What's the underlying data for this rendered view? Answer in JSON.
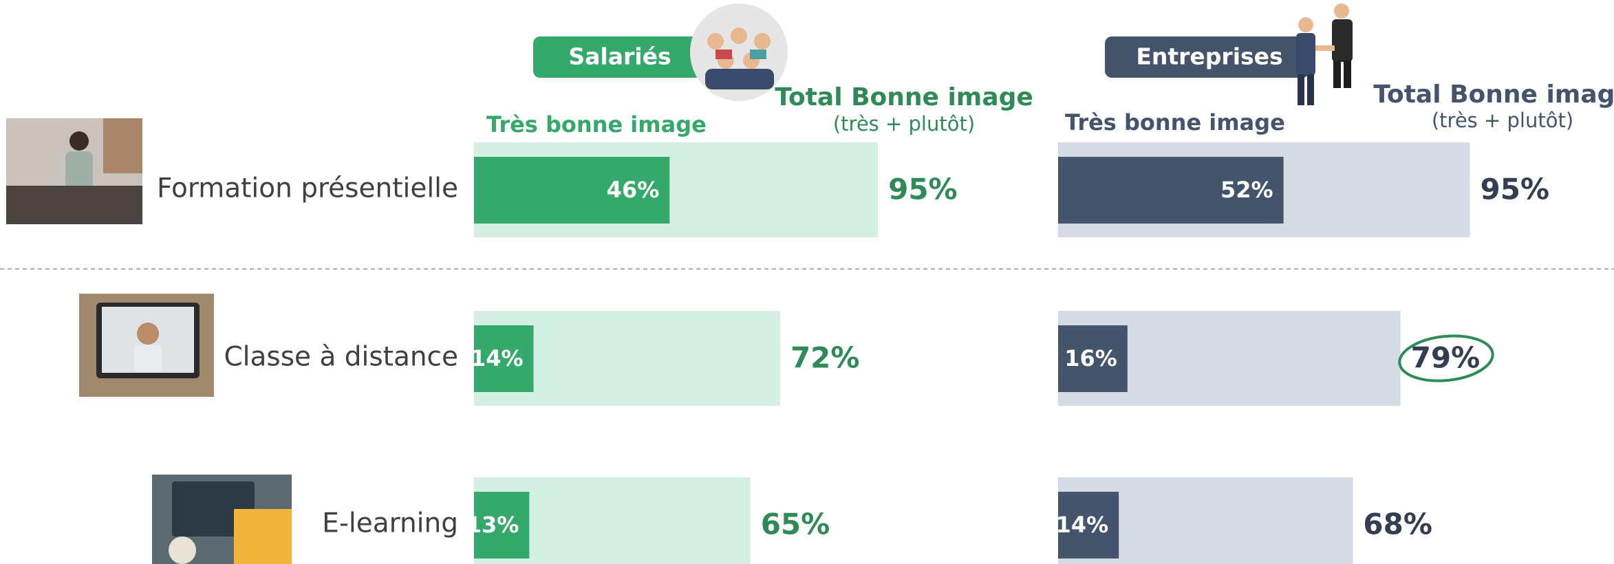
{
  "chart_data": [
    {
      "type": "bar",
      "title": "Salariés",
      "categories": [
        "Formation présentielle",
        "Classe à distance",
        "E-learning"
      ],
      "xlim": [
        0,
        100
      ],
      "series": [
        {
          "name": "Très bonne image",
          "color": "#35a96b",
          "values": [
            46,
            14,
            13
          ],
          "value_labels": [
            "46%",
            "14%",
            "13%"
          ]
        },
        {
          "name": "Total Bonne image",
          "subtitle": "(très + plutôt)",
          "color": "#d4f0e2",
          "values": [
            95,
            72,
            65
          ],
          "value_labels": [
            "95%",
            "72%",
            "65%"
          ]
        }
      ]
    },
    {
      "type": "bar",
      "title": "Entreprises",
      "xlim": [
        0,
        100
      ],
      "series": [
        {
          "name": "Très bonne image",
          "color": "#44546a",
          "values": [
            52,
            16,
            14
          ],
          "value_labels": [
            "52%",
            "16%",
            "14%"
          ]
        },
        {
          "name": "Total Bonne image",
          "subtitle": "(très + plutôt)",
          "color": "#d5dbe5",
          "values": [
            95,
            79,
            68
          ],
          "value_labels": [
            "95%",
            "79%",
            "68%"
          ]
        }
      ]
    }
  ]
}
